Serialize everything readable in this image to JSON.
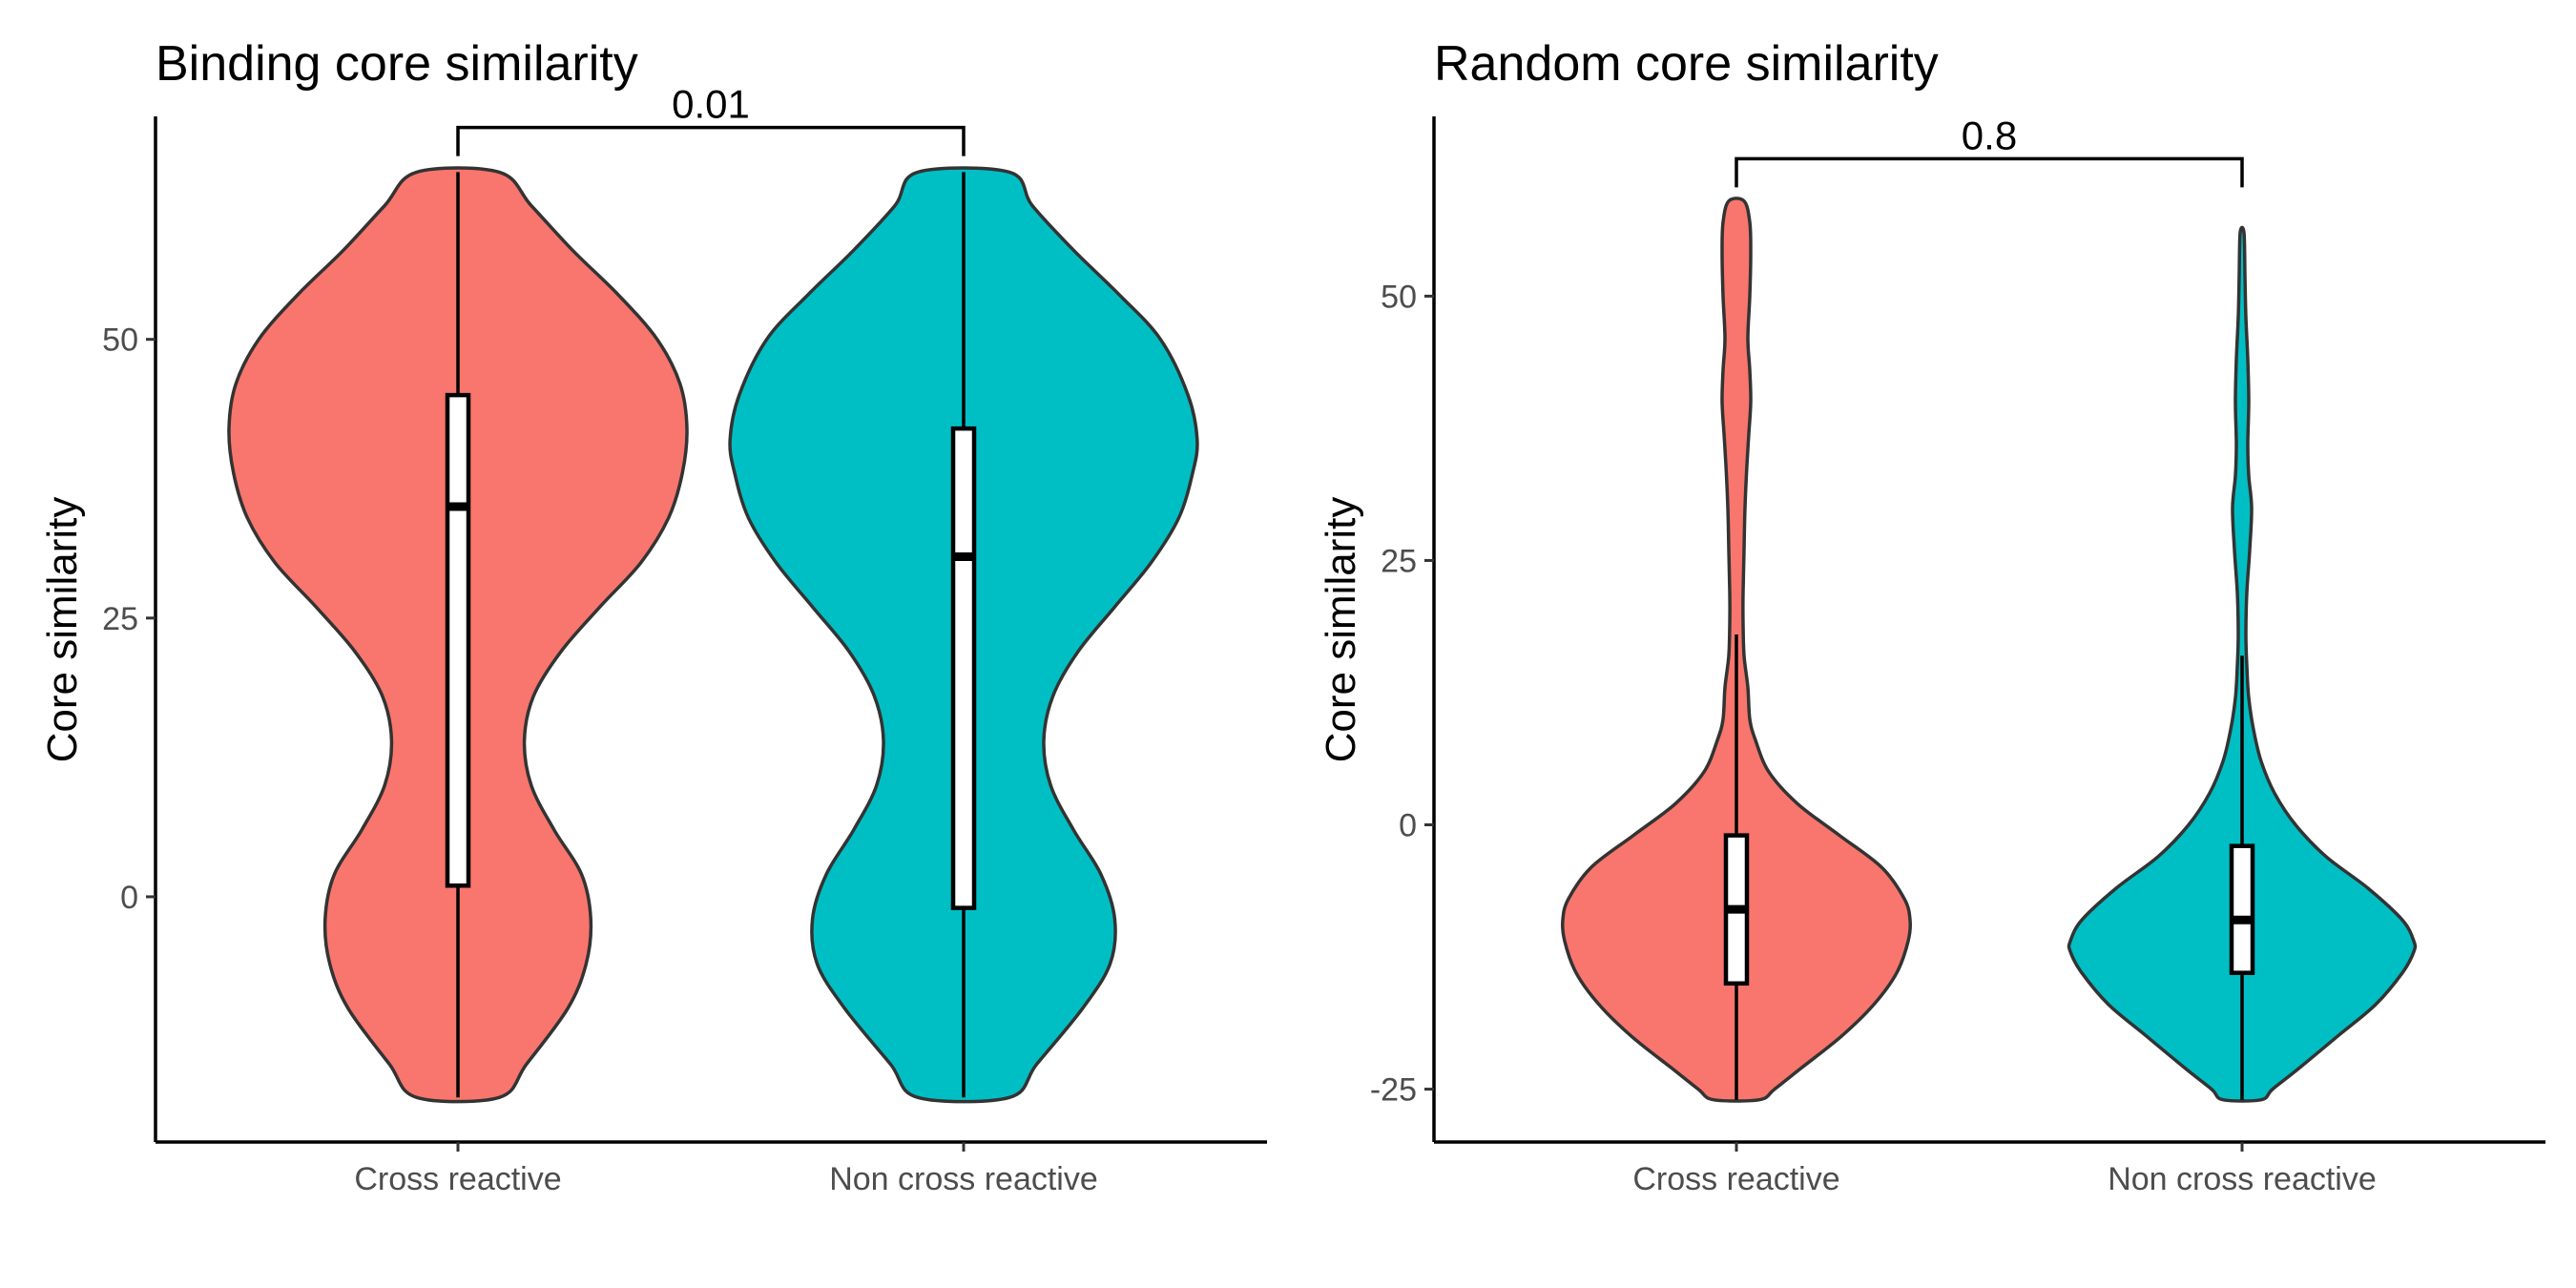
{
  "chart_data": [
    {
      "type": "violin",
      "title": "Binding core similarity",
      "xlabel": "",
      "ylabel": "Core similarity",
      "ylim": [
        -22,
        70
      ],
      "yticks": [
        0,
        25,
        50
      ],
      "categories": [
        "Cross reactive",
        "Non cross reactive"
      ],
      "significance": {
        "label": "0.01",
        "y": 69
      },
      "groups": [
        {
          "name": "Cross reactive",
          "color": "#F8766D",
          "box": {
            "whisker_low": -18,
            "q1": 1,
            "median": 35,
            "q3": 45,
            "whisker_high": 65
          },
          "density_width": [
            [
              -18,
              0.18
            ],
            [
              -15,
              0.3
            ],
            [
              -10,
              0.48
            ],
            [
              -6,
              0.56
            ],
            [
              -2,
              0.58
            ],
            [
              2,
              0.54
            ],
            [
              6,
              0.42
            ],
            [
              10,
              0.32
            ],
            [
              14,
              0.29
            ],
            [
              18,
              0.33
            ],
            [
              22,
              0.45
            ],
            [
              26,
              0.62
            ],
            [
              30,
              0.8
            ],
            [
              34,
              0.92
            ],
            [
              38,
              0.98
            ],
            [
              42,
              1.0
            ],
            [
              46,
              0.97
            ],
            [
              50,
              0.87
            ],
            [
              54,
              0.7
            ],
            [
              58,
              0.5
            ],
            [
              62,
              0.32
            ],
            [
              65,
              0.18
            ]
          ]
        },
        {
          "name": "Non cross reactive",
          "color": "#00BFC4",
          "box": {
            "whisker_low": -18,
            "q1": -1,
            "median": 30.5,
            "q3": 42,
            "whisker_high": 65
          },
          "density_width": [
            [
              -18,
              0.2
            ],
            [
              -15,
              0.32
            ],
            [
              -10,
              0.52
            ],
            [
              -6,
              0.64
            ],
            [
              -2,
              0.66
            ],
            [
              2,
              0.6
            ],
            [
              6,
              0.48
            ],
            [
              10,
              0.38
            ],
            [
              14,
              0.35
            ],
            [
              18,
              0.39
            ],
            [
              22,
              0.5
            ],
            [
              26,
              0.66
            ],
            [
              30,
              0.82
            ],
            [
              34,
              0.94
            ],
            [
              38,
              1.0
            ],
            [
              41,
              1.02
            ],
            [
              45,
              0.98
            ],
            [
              50,
              0.86
            ],
            [
              54,
              0.68
            ],
            [
              58,
              0.48
            ],
            [
              62,
              0.3
            ],
            [
              65,
              0.2
            ]
          ]
        }
      ]
    },
    {
      "type": "violin",
      "title": "Random core similarity",
      "xlabel": "",
      "ylabel": "Core similarity",
      "ylim": [
        -30,
        67
      ],
      "yticks": [
        -25,
        0,
        25,
        50
      ],
      "categories": [
        "Cross reactive",
        "Non cross reactive"
      ],
      "significance": {
        "label": "0.8",
        "y": 63
      },
      "groups": [
        {
          "name": "Cross reactive",
          "color": "#F8766D",
          "box": {
            "whisker_low": -26,
            "q1": -15,
            "median": -8,
            "q3": -1,
            "whisker_high": 18
          },
          "density_width": [
            [
              -26,
              0.12
            ],
            [
              -25,
              0.2
            ],
            [
              -23,
              0.34
            ],
            [
              -20,
              0.55
            ],
            [
              -17,
              0.72
            ],
            [
              -14,
              0.84
            ],
            [
              -11,
              0.9
            ],
            [
              -9,
              0.91
            ],
            [
              -7,
              0.88
            ],
            [
              -4,
              0.76
            ],
            [
              -1,
              0.54
            ],
            [
              2,
              0.32
            ],
            [
              5,
              0.17
            ],
            [
              8,
              0.1
            ],
            [
              10,
              0.07
            ],
            [
              13,
              0.06
            ],
            [
              16,
              0.04
            ],
            [
              19,
              0.035
            ],
            [
              22,
              0.035
            ],
            [
              26,
              0.04
            ],
            [
              30,
              0.045
            ],
            [
              34,
              0.055
            ],
            [
              37,
              0.065
            ],
            [
              40,
              0.075
            ],
            [
              43,
              0.07
            ],
            [
              46,
              0.06
            ],
            [
              50,
              0.07
            ],
            [
              54,
              0.075
            ],
            [
              57,
              0.07
            ],
            [
              59,
              0.04
            ]
          ]
        },
        {
          "name": "Non cross reactive",
          "color": "#00BFC4",
          "box": {
            "whisker_low": -26,
            "q1": -14,
            "median": -9,
            "q3": -2,
            "whisker_high": 16
          },
          "density_width": [
            [
              -26,
              0.1
            ],
            [
              -25,
              0.16
            ],
            [
              -23,
              0.3
            ],
            [
              -20,
              0.5
            ],
            [
              -17,
              0.7
            ],
            [
              -14,
              0.84
            ],
            [
              -12,
              0.9
            ],
            [
              -11,
              0.9
            ],
            [
              -9,
              0.84
            ],
            [
              -6,
              0.66
            ],
            [
              -3,
              0.44
            ],
            [
              0,
              0.28
            ],
            [
              3,
              0.17
            ],
            [
              6,
              0.1
            ],
            [
              9,
              0.06
            ],
            [
              12,
              0.035
            ],
            [
              15,
              0.025
            ],
            [
              18,
              0.02
            ],
            [
              22,
              0.025
            ],
            [
              26,
              0.04
            ],
            [
              30,
              0.05
            ],
            [
              33,
              0.035
            ],
            [
              36,
              0.03
            ],
            [
              40,
              0.035
            ],
            [
              44,
              0.03
            ],
            [
              48,
              0.02
            ],
            [
              52,
              0.015
            ],
            [
              56,
              0.01
            ]
          ]
        }
      ]
    }
  ]
}
